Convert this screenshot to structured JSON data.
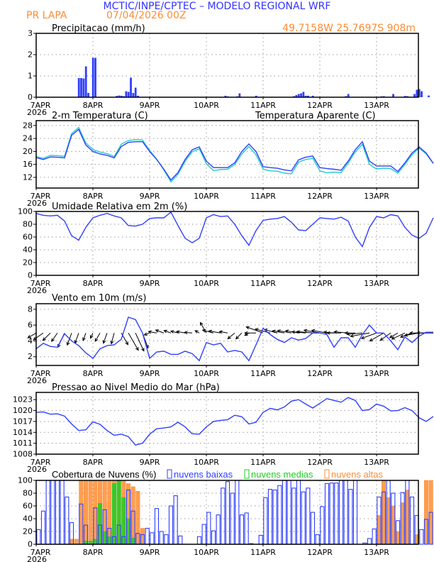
{
  "header": {
    "title": "MCTIC/INPE/CPTEC – MODELO REGIONAL WRF",
    "location": "PR LAPA",
    "run": "07/04/2026 00Z",
    "coords": "49.7158W 25.7697S 908m",
    "title_color": "#3333ff",
    "info_color": "#ff8c33"
  },
  "x_ticks": [
    "7APR",
    "8APR",
    "9APR",
    "10APR",
    "11APR",
    "12APR",
    "13APR"
  ],
  "x_year": "2026",
  "chart_data": [
    {
      "type": "bar",
      "title": "Precipitacao (mm/h)",
      "ylim": [
        0,
        3
      ],
      "yticks": [
        0,
        1,
        2,
        3
      ],
      "color": "#2f3fff",
      "grid": true,
      "x_start": "07/04/2026 00Z",
      "points_hour_value": [
        [
          18,
          0.9
        ],
        [
          19,
          0.9
        ],
        [
          20,
          0.88
        ],
        [
          21,
          1.45
        ],
        [
          22,
          0.2
        ],
        [
          24,
          1.85
        ],
        [
          25,
          1.85
        ],
        [
          34,
          0.06
        ],
        [
          35,
          0.08
        ],
        [
          36,
          0.07
        ],
        [
          37,
          0.05
        ],
        [
          38,
          0.28
        ],
        [
          39,
          0.25
        ],
        [
          40,
          0.92
        ],
        [
          41,
          0.2
        ],
        [
          42,
          0.45
        ],
        [
          43,
          0.07
        ],
        [
          80,
          0.07
        ],
        [
          81,
          0.04
        ],
        [
          85,
          0.04
        ],
        [
          86,
          0.18
        ],
        [
          93,
          0.07
        ],
        [
          109,
          0.05
        ],
        [
          110,
          0.1
        ],
        [
          111,
          0.15
        ],
        [
          112,
          0.18
        ],
        [
          113,
          0.25
        ],
        [
          114,
          0.07
        ],
        [
          115,
          0.07
        ],
        [
          117,
          0.07
        ],
        [
          131,
          0.05
        ],
        [
          132,
          0.15
        ],
        [
          146,
          0.04
        ],
        [
          147,
          0.05
        ],
        [
          151,
          0.15
        ],
        [
          156,
          0.06
        ],
        [
          157,
          0.05
        ],
        [
          160,
          0.15
        ],
        [
          161,
          0.35
        ],
        [
          162,
          0.38
        ],
        [
          163,
          0.28
        ],
        [
          166,
          0.08
        ]
      ]
    },
    {
      "type": "line",
      "title": "2-m Temperatura (C)",
      "ylim": [
        8.7,
        29.5
      ],
      "yticks": [
        12,
        16,
        20,
        24,
        28
      ],
      "grid": true,
      "x_start": "07/04/2026 00Z",
      "x_step_hours": 3,
      "series": [
        {
          "name": "2-m Temperatura (C)",
          "color": "#2f3fff",
          "values": [
            18.1,
            17.5,
            18.3,
            18.2,
            18,
            25,
            26.8,
            22,
            20,
            19.2,
            18.8,
            18,
            21.5,
            22.8,
            23,
            23,
            20,
            17.5,
            14.5,
            11.2,
            13.5,
            17.5,
            20.5,
            21.4,
            17,
            15,
            15,
            15,
            16.5,
            20,
            22.3,
            20,
            15.3,
            15,
            14.8,
            14.3,
            14,
            17.4,
            18.2,
            18.6,
            15,
            14.7,
            14.5,
            14.2,
            17,
            20.5,
            23,
            17,
            15.5,
            15.5,
            15.5,
            13.8,
            16.5,
            19.5,
            21.4,
            19.5,
            16.3
          ]
        },
        {
          "name": "Temperatura Aparente (C)",
          "color": "#22cccc",
          "values": [
            18.4,
            17.9,
            18.8,
            18.7,
            18.5,
            25.5,
            27.4,
            22.6,
            20.6,
            19.8,
            19.3,
            18.4,
            22.2,
            23.4,
            23.6,
            23.5,
            20.3,
            17.6,
            14.3,
            10.6,
            13,
            16.9,
            19.9,
            20.8,
            16.2,
            14.1,
            14.4,
            14.5,
            16,
            19.2,
            21.5,
            19,
            14.5,
            14,
            13.9,
            13.3,
            13.1,
            16.7,
            17.5,
            17.9,
            14,
            13.4,
            13.6,
            13.5,
            16.4,
            19.8,
            22.2,
            16,
            14.6,
            14.8,
            14.7,
            13.3,
            16,
            19,
            21,
            19.2,
            16.3
          ]
        }
      ]
    },
    {
      "type": "line",
      "title": "Umidade Relativa em 2m (%)",
      "ylim": [
        0,
        100
      ],
      "yticks": [
        0,
        20,
        40,
        60,
        80,
        100
      ],
      "grid": true,
      "x_start": "07/04/2026 00Z",
      "x_step_hours": 3,
      "series": [
        {
          "color": "#2f3fff",
          "values": [
            97,
            94,
            93,
            94,
            85,
            62,
            55,
            75,
            90,
            94,
            97,
            93,
            90,
            78,
            77,
            80,
            89,
            90,
            90,
            99,
            78,
            58,
            51,
            58,
            90,
            95,
            92,
            93,
            80,
            62,
            47,
            70,
            86,
            88,
            89,
            92,
            83,
            71,
            70,
            80,
            90,
            89,
            88,
            91,
            85,
            60,
            45,
            75,
            92,
            90,
            95,
            93,
            75,
            63,
            58,
            66,
            90
          ]
        }
      ]
    },
    {
      "type": "line",
      "title": "Vento em 10m (m/s)",
      "ylim": [
        0.9,
        8.7
      ],
      "yticks": [
        2,
        4,
        6,
        8
      ],
      "grid": true,
      "x_start": "07/04/2026 00Z",
      "x_step_hours": 3,
      "series": [
        {
          "color": "#2f3fff",
          "values": [
            3,
            3.7,
            3.3,
            3.2,
            4.9,
            4,
            3.4,
            2.5,
            1.8,
            3,
            3.4,
            3.5,
            4.2,
            7,
            6.7,
            5,
            1.8,
            2.6,
            2.7,
            2.3,
            2.3,
            2.7,
            2.4,
            1.5,
            3.8,
            3.5,
            3.7,
            2.6,
            2.8,
            2.6,
            1.5,
            3.5,
            5.6,
            4.8,
            4.2,
            3.8,
            4.4,
            4.1,
            4.3,
            5,
            5,
            4.8,
            3.2,
            4.4,
            4.4,
            3.2,
            4.8,
            6,
            5,
            5,
            4,
            2.9,
            4.5,
            3.8,
            4.6,
            5.1,
            5.1
          ]
        }
      ],
      "wind_arrows": {
        "color": "#000000",
        "direction_to_deg": [
          240,
          235,
          225,
          215,
          205,
          200,
          200,
          200,
          205,
          210,
          200,
          195,
          150,
          150,
          155,
          160,
          250,
          280,
          290,
          290,
          285,
          280,
          275,
          300,
          330,
          285,
          280,
          280,
          230,
          225,
          240,
          270,
          290,
          285,
          285,
          280,
          280,
          280,
          275,
          275,
          280,
          280,
          275,
          270,
          275,
          270,
          265,
          260,
          250,
          240,
          235,
          240,
          245,
          250,
          260,
          270,
          270
        ]
      }
    },
    {
      "type": "line",
      "title": "Pressao ao Nivel Medio do Mar (hPa)",
      "ylim": [
        1008,
        1025
      ],
      "yticks": [
        1008,
        1011,
        1014,
        1017,
        1020,
        1023
      ],
      "grid": true,
      "x_start": "07/04/2026 00Z",
      "x_step_hours": 3,
      "series": [
        {
          "color": "#2f3fff",
          "values": [
            1019.5,
            1019.6,
            1019,
            1019.1,
            1018.5,
            1016.3,
            1014.5,
            1014.7,
            1016.9,
            1016.2,
            1014.5,
            1013.2,
            1013.5,
            1012.8,
            1010.5,
            1011,
            1013.5,
            1015,
            1015.2,
            1015.5,
            1016.8,
            1015.5,
            1013.6,
            1013.5,
            1015.5,
            1017,
            1017.3,
            1017.5,
            1018.7,
            1018.3,
            1016.3,
            1016.8,
            1019.5,
            1020.6,
            1020.2,
            1021,
            1022.6,
            1023,
            1021.8,
            1020.7,
            1022,
            1023.3,
            1022.8,
            1022.3,
            1023.6,
            1022.8,
            1020,
            1020.3,
            1021.8,
            1021.2,
            1019.9,
            1020,
            1020.8,
            1020,
            1018,
            1017,
            1018.4
          ]
        }
      ]
    },
    {
      "type": "bar",
      "title": "Cobertura de Nuvens (%)",
      "ylim": [
        0,
        100
      ],
      "yticks": [
        0,
        20,
        40,
        60,
        80,
        100
      ],
      "grid": true,
      "x_start": "07/04/2026 00Z",
      "x_step_hours": 2,
      "legend_placement": "top",
      "series": [
        {
          "name": "nuvens altas",
          "color": "#ff8c33",
          "values": [
            0,
            0,
            0,
            0,
            0,
            0,
            0,
            8,
            8,
            100,
            100,
            100,
            100,
            100,
            100,
            100,
            100,
            100,
            100,
            95,
            90,
            83,
            25,
            0,
            0,
            0,
            0,
            0,
            0,
            0,
            0,
            0,
            0,
            0,
            0,
            0,
            0,
            0,
            0,
            0,
            0,
            0,
            0,
            0,
            0,
            0,
            0,
            0,
            0,
            0,
            0,
            0,
            0,
            0,
            0,
            0,
            0,
            0,
            0,
            0,
            0,
            0,
            0,
            0,
            0,
            0,
            0,
            0,
            0,
            0,
            0,
            0,
            45,
            100,
            73,
            60,
            20,
            65,
            85,
            0,
            15,
            0,
            100,
            100
          ]
        },
        {
          "name": "nuvens medias",
          "color": "#22cc22",
          "values": [
            0,
            0,
            0,
            0,
            0,
            0,
            0,
            0,
            0,
            0,
            5,
            5,
            8,
            64,
            20,
            12,
            95,
            100,
            73,
            40,
            10,
            0,
            0,
            0,
            0,
            0,
            0,
            0,
            0,
            0,
            0,
            0,
            0,
            0,
            0,
            0,
            0,
            0,
            0,
            0,
            0,
            0,
            0,
            0,
            0,
            0,
            0,
            0,
            0,
            0,
            0,
            0,
            0,
            0,
            0,
            0,
            0,
            0,
            0,
            0,
            0,
            0,
            0,
            0,
            0,
            0,
            0,
            0,
            0,
            0,
            0,
            0,
            0,
            0,
            0,
            0,
            0,
            0,
            0,
            0,
            0,
            0,
            0,
            0
          ]
        },
        {
          "name": "nuvens baixas",
          "color": "#2f3fff",
          "values": [
            23,
            52,
            100,
            100,
            100,
            100,
            74,
            34,
            0,
            63,
            30,
            0,
            57,
            30,
            54,
            25,
            12,
            30,
            12,
            85,
            52,
            17,
            15,
            25,
            18,
            56,
            20,
            15,
            60,
            76,
            13,
            0,
            0,
            0,
            12,
            31,
            50,
            21,
            46,
            88,
            98,
            80,
            100,
            46,
            49,
            1,
            0,
            14,
            73,
            86,
            85,
            92,
            100,
            100,
            88,
            100,
            82,
            88,
            50,
            15,
            59,
            95,
            96,
            96,
            100,
            100,
            86,
            100,
            0,
            2,
            9,
            24,
            74,
            82,
            100,
            80,
            37,
            81,
            100,
            74,
            45,
            23,
            39,
            50
          ]
        }
      ]
    }
  ]
}
